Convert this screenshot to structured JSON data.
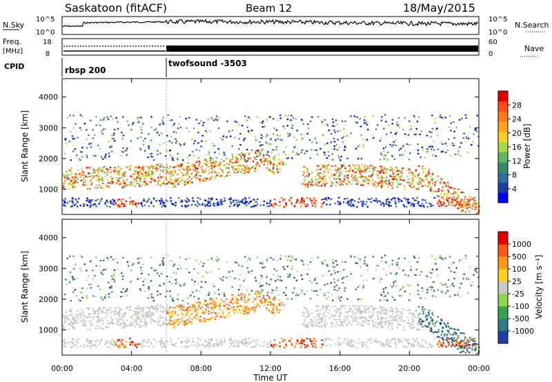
{
  "header": {
    "station": "Saskatoon (fitACF)",
    "beam": "Beam 12",
    "date": "18/May/2015"
  },
  "strip_labels": {
    "nsky": "N.Sky",
    "nsearch": "N.Search",
    "freq": "Freq.",
    "mhz": "[MHz]",
    "nave": "Nave",
    "cpid": "CPID",
    "ntick_hi": "10^5",
    "ntick_lo": "10^0",
    "freq_ticks": [
      "18",
      "8"
    ],
    "nave_ticks": [
      "60",
      "0"
    ]
  },
  "cpid_segments": [
    {
      "start": "00:00",
      "label": "rbsp 200"
    },
    {
      "start": "06:00",
      "label": "twofsound -3503"
    }
  ],
  "chart_data": [
    {
      "type": "heatmap",
      "panel": "power",
      "ylabel": "Slant Range [km]",
      "ylim": [
        180,
        4600
      ],
      "y_ticks": [
        "1000",
        "2000",
        "3000",
        "4000"
      ],
      "colorbar": {
        "label": "Power [dB]",
        "range": [
          0,
          32
        ],
        "ticks": [
          "4",
          "8",
          "12",
          "16",
          "20",
          "24",
          "28"
        ],
        "colors": [
          "#0000ff",
          "#1a3fa8",
          "#2e6e9e",
          "#3a8a6a",
          "#5fb65f",
          "#a8d84a",
          "#ffd21e",
          "#ffa51e",
          "#ff7a1a",
          "#ff4a14",
          "#e00000"
        ]
      }
    },
    {
      "type": "heatmap",
      "panel": "velocity",
      "ylabel": "Slant Range [km]",
      "ylim": [
        180,
        4600
      ],
      "y_ticks": [
        "1000",
        "2000",
        "3000",
        "4000"
      ],
      "colorbar": {
        "label": "Velocity [m s⁻¹]",
        "ticks": [
          "1000",
          "500",
          "100",
          "25",
          "-25",
          "-100",
          "-500",
          "-1000"
        ],
        "colors": [
          "#1f3fa8",
          "#2e7a8a",
          "#3aa04a",
          "#8ad84a",
          "#c8c8c0",
          "#ffd21e",
          "#ff9a1a",
          "#ff5a14",
          "#e00000"
        ]
      }
    }
  ],
  "time_axis": {
    "label": "Time UT",
    "ticks": [
      "00:00",
      "04:00",
      "08:00",
      "12:00",
      "16:00",
      "20:00",
      "00:00"
    ]
  }
}
